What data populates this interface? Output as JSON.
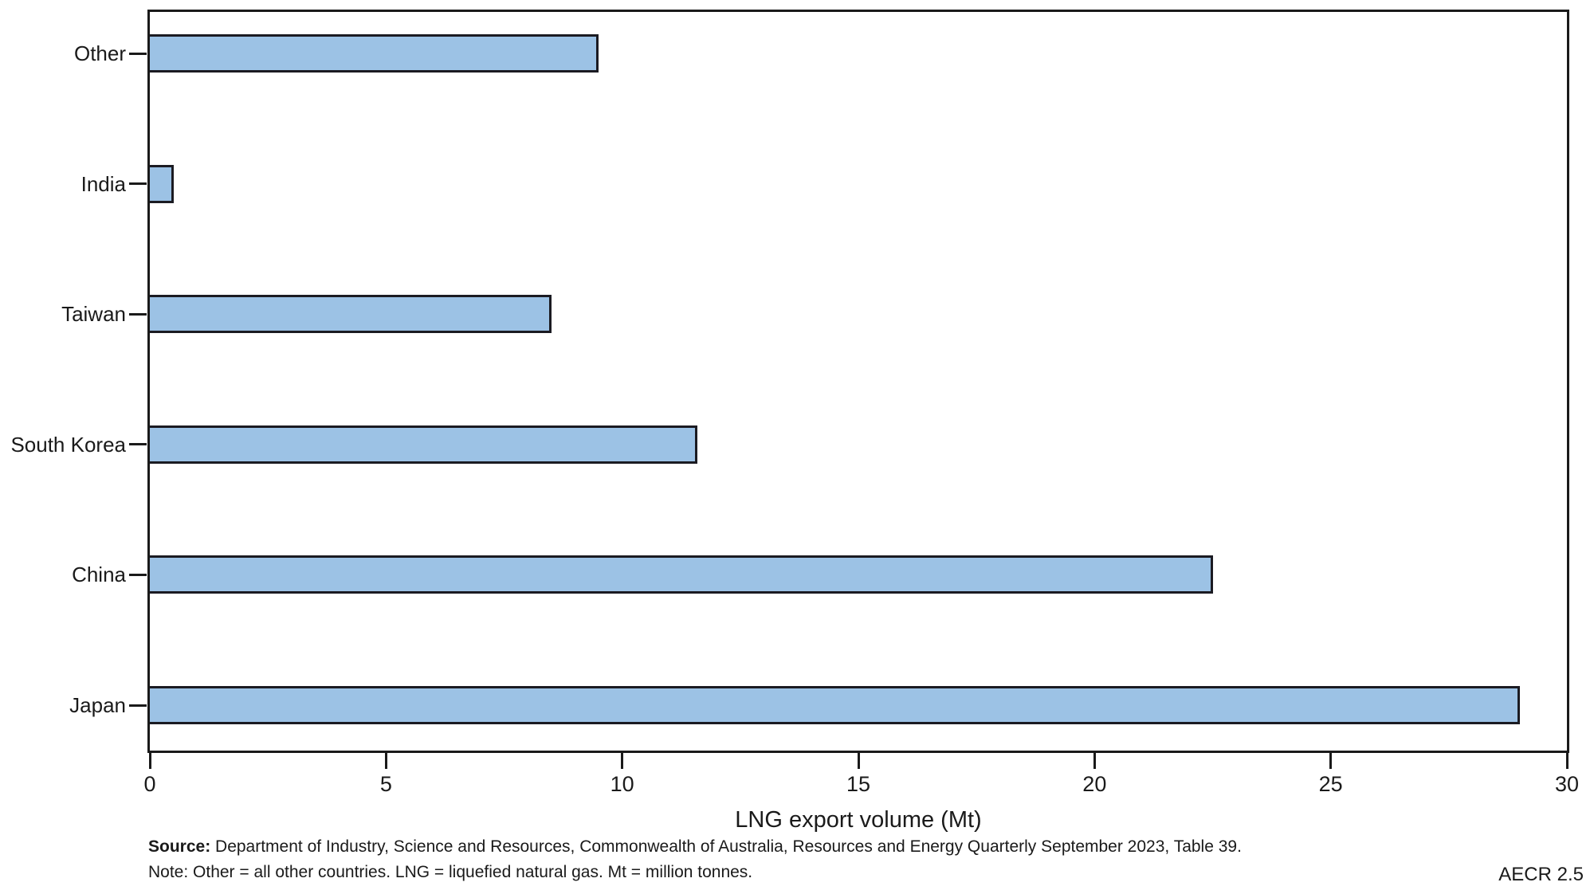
{
  "chart_data": {
    "type": "bar",
    "orientation": "horizontal",
    "title": "",
    "categories": [
      "Other",
      "India",
      "Taiwan",
      "South Korea",
      "China",
      "Japan"
    ],
    "values": [
      9.5,
      0.5,
      8.5,
      11.6,
      22.5,
      29.0
    ],
    "xlabel": "LNG export volume (Mt)",
    "ylabel": "",
    "xlim": [
      0,
      30
    ],
    "xticks": [
      0,
      5,
      10,
      15,
      20,
      25,
      30
    ],
    "grid": false,
    "legend": false,
    "bar_fill_color": "#9CC2E5",
    "bar_border_color": "#1B1B22",
    "axis_color": "#1A1A1A"
  },
  "footer": {
    "source_label": "Source:",
    "source_text": " Department of Industry, Science and Resources, Commonwealth of Australia, Resources and Energy Quarterly September 2023, Table 39.",
    "note_text": "Note: Other = all other countries. LNG = liquefied natural gas. Mt = million tonnes.",
    "figure_ref": "AECR 2.5"
  }
}
